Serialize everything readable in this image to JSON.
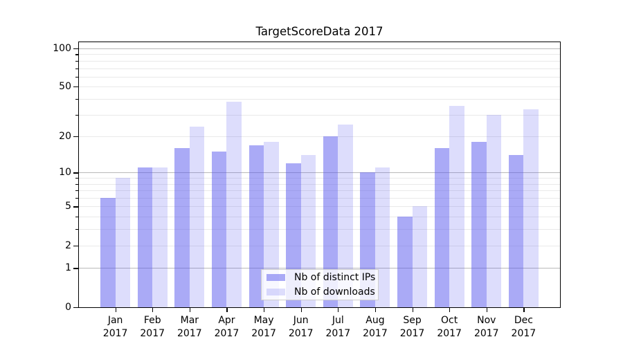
{
  "chart_data": {
    "type": "bar",
    "title": "TargetScoreData 2017",
    "year_label": "2017",
    "categories": [
      "Jan",
      "Feb",
      "Mar",
      "Apr",
      "May",
      "Jun",
      "Jul",
      "Aug",
      "Sep",
      "Oct",
      "Nov",
      "Dec"
    ],
    "series": [
      {
        "name": "Nb of distinct IPs",
        "color": "rgba(85,85,238,0.5)",
        "values": [
          6,
          11,
          16,
          15,
          17,
          12,
          20,
          10,
          4,
          16,
          18,
          14
        ]
      },
      {
        "name": "Nb of downloads",
        "color": "rgba(85,85,238,0.2)",
        "values": [
          9,
          11,
          24,
          38,
          18,
          14,
          25,
          11,
          5,
          35,
          30,
          33
        ]
      }
    ],
    "xlabel": "",
    "ylabel": "",
    "yscale": "symlog-ln1p",
    "ylim": [
      0,
      113
    ],
    "yticks": [
      0,
      1,
      2,
      5,
      10,
      20,
      50,
      100
    ],
    "yticks_major_grid": [
      1,
      10,
      100
    ],
    "yticks_minor": [
      3,
      4,
      6,
      7,
      8,
      9,
      30,
      40,
      60,
      70,
      80,
      90
    ],
    "grid": true,
    "legend_position": "lower-center"
  },
  "colors": {
    "major_grid": "#b8b8b8",
    "minor_grid": "#e9e9e9",
    "spine": "#000000",
    "legend_bg": "rgba(255,255,255,0.8)",
    "legend_border": "#cccccc"
  }
}
